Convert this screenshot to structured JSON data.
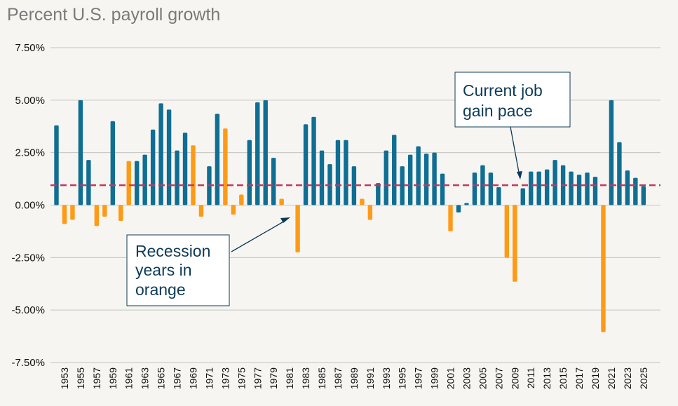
{
  "chart_data": {
    "type": "bar",
    "title": "Percent U.S. payroll growth",
    "ylim": [
      -7.5,
      7.5
    ],
    "y_ticks": [
      7.5,
      5.0,
      2.5,
      0.0,
      -2.5,
      -5.0,
      -7.5
    ],
    "y_tick_labels": [
      "7.50%",
      "5.00%",
      "2.50%",
      "0.00%",
      "-2.50%",
      "-5.00%",
      "-7.50%"
    ],
    "grid": true,
    "first_year": 1952,
    "years": [
      1952,
      1953,
      1954,
      1955,
      1956,
      1957,
      1958,
      1959,
      1960,
      1961,
      1962,
      1963,
      1964,
      1965,
      1966,
      1967,
      1968,
      1969,
      1970,
      1971,
      1972,
      1973,
      1974,
      1975,
      1976,
      1977,
      1978,
      1979,
      1980,
      1981,
      1982,
      1983,
      1984,
      1985,
      1986,
      1987,
      1988,
      1989,
      1990,
      1991,
      1992,
      1993,
      1994,
      1995,
      1996,
      1997,
      1998,
      1999,
      2000,
      2001,
      2002,
      2003,
      2004,
      2005,
      2006,
      2007,
      2008,
      2009,
      2010,
      2011,
      2012,
      2013,
      2014,
      2015,
      2016,
      2017,
      2018,
      2019,
      2020,
      2021,
      2022,
      2023,
      2024,
      2025
    ],
    "values": [
      3.8,
      -0.9,
      -0.7,
      5.0,
      2.15,
      -1.0,
      -0.55,
      4.0,
      -0.75,
      2.1,
      2.1,
      2.4,
      3.6,
      4.85,
      4.55,
      2.6,
      3.45,
      2.85,
      -0.55,
      1.85,
      4.35,
      3.65,
      -0.45,
      0.5,
      3.1,
      4.9,
      5.0,
      2.25,
      0.3,
      0.0,
      -2.25,
      3.85,
      4.2,
      2.6,
      1.95,
      3.1,
      3.1,
      1.85,
      0.3,
      -0.7,
      1.05,
      2.6,
      3.35,
      1.85,
      2.4,
      2.8,
      2.45,
      2.5,
      1.5,
      -1.25,
      -0.35,
      0.1,
      1.55,
      1.9,
      1.55,
      0.85,
      -2.5,
      -3.65,
      0.8,
      1.6,
      1.6,
      1.7,
      2.15,
      1.9,
      1.6,
      1.45,
      1.55,
      1.35,
      -6.05,
      5.0,
      3.0,
      1.65,
      1.3,
      0.9
    ],
    "recession": [
      false,
      true,
      true,
      false,
      false,
      true,
      true,
      false,
      true,
      true,
      false,
      false,
      false,
      false,
      false,
      false,
      false,
      true,
      true,
      false,
      false,
      true,
      true,
      true,
      false,
      false,
      false,
      false,
      true,
      true,
      true,
      false,
      false,
      false,
      false,
      false,
      false,
      false,
      true,
      true,
      false,
      false,
      false,
      false,
      false,
      false,
      false,
      false,
      false,
      true,
      false,
      false,
      false,
      false,
      false,
      false,
      true,
      true,
      false,
      false,
      false,
      false,
      false,
      false,
      false,
      false,
      false,
      false,
      true,
      false,
      false,
      false,
      false,
      false
    ],
    "x_tick_labels": [
      "1953",
      "1955",
      "1957",
      "1959",
      "1961",
      "1963",
      "1965",
      "1967",
      "1969",
      "1971",
      "1973",
      "1975",
      "1977",
      "1979",
      "1981",
      "1983",
      "1985",
      "1987",
      "1989",
      "1991",
      "1993",
      "1995",
      "1997",
      "1999",
      "2001",
      "2003",
      "2005",
      "2007",
      "2009",
      "2011",
      "2013",
      "2015",
      "2017",
      "2019",
      "2021",
      "2023",
      "2025"
    ],
    "reference_line": 0.95,
    "colors": {
      "expansion": "#0f6e93",
      "recession": "#ff9a16",
      "reference_line": "#c0395b",
      "grid": "#c4c4c0",
      "callout_border": "#0d3b57"
    }
  },
  "annotations": {
    "current_pace": [
      "Current job",
      "gain pace"
    ],
    "recession": [
      "Recession",
      "years in",
      "orange"
    ]
  }
}
